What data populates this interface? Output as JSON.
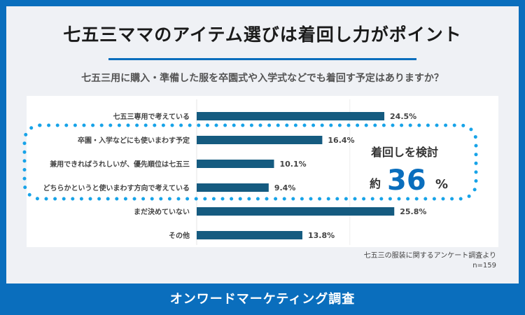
{
  "title": "七五三ママのアイテム選びは着回し力がポイント",
  "question": "七五三用に購入・準備した服を卒園式や入学式などでも着回す予定はありますか？",
  "footer": "オンワードマーケティング調査",
  "source": "七五三の服装に関するアンケート調査より",
  "sample": "n=159",
  "callout": {
    "label": "着回しを検討",
    "prefix": "約",
    "value": "36",
    "unit": "%"
  },
  "colors": {
    "bar": "#155b80",
    "accent": "#0a6ebd",
    "dots": "#17a3e8"
  },
  "chart_data": {
    "type": "bar",
    "orientation": "horizontal",
    "categories": [
      "七五三専用で考えている",
      "卒園・入学などにも使いまわす予定",
      "兼用できればうれしいが、優先順位は七五三",
      "どちらかというと使いまわす方向で考えている",
      "まだ決めていない",
      "その他"
    ],
    "values": [
      24.5,
      16.4,
      10.1,
      9.4,
      25.8,
      13.8
    ],
    "labels": [
      "24.5%",
      "16.4%",
      "10.1%",
      "9.4%",
      "25.8%",
      "13.8%"
    ],
    "unit": "%",
    "xlim": [
      0,
      30
    ],
    "grid": true
  }
}
